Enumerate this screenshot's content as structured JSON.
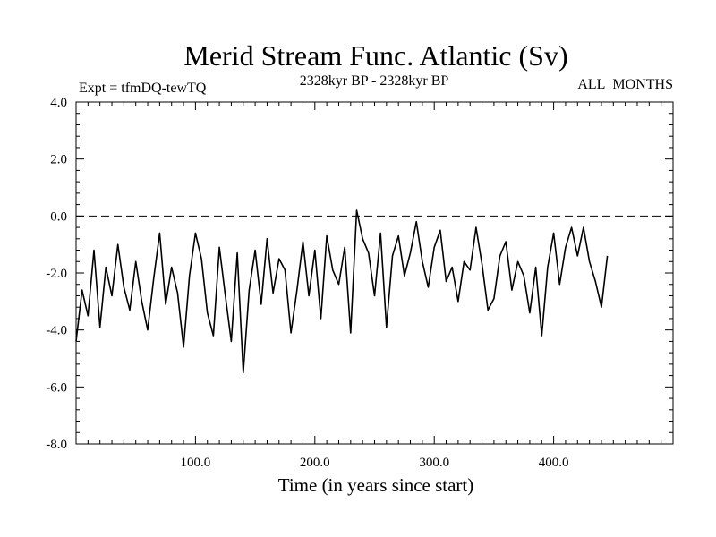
{
  "chart_data": {
    "type": "line",
    "title": "Merid Stream Func. Atlantic (Sv)",
    "subtitle_left": "Expt = tfmDQ-tewTQ",
    "subtitle_center": "2328kyr BP - 2328kyr BP",
    "subtitle_right": "ALL_MONTHS",
    "xlabel": "Time (in years since start)",
    "ylabel": "",
    "xlim": [
      0,
      500
    ],
    "ylim": [
      -8,
      4
    ],
    "x_ticks": [
      100,
      200,
      300,
      400
    ],
    "x_tick_labels": [
      "100.0",
      "200.0",
      "300.0",
      "400.0"
    ],
    "y_ticks": [
      -8,
      -6,
      -4,
      -2,
      0,
      2,
      4
    ],
    "y_tick_labels": [
      "-8.0",
      "-6.0",
      "-4.0",
      "-2.0",
      "0.0",
      "2.0",
      "4.0"
    ],
    "reference_line": {
      "y": 0,
      "style": "dashed"
    },
    "series": [
      {
        "name": "Merid Stream Func. Atlantic",
        "color": "#000000",
        "x_start": 0,
        "x_step": 5,
        "values": [
          -4.4,
          -2.6,
          -3.5,
          -1.2,
          -3.9,
          -1.8,
          -2.8,
          -1.0,
          -2.5,
          -3.3,
          -1.6,
          -3.0,
          -4.0,
          -2.2,
          -0.6,
          -3.1,
          -1.8,
          -2.7,
          -4.6,
          -2.1,
          -0.6,
          -1.5,
          -3.4,
          -4.2,
          -1.1,
          -2.8,
          -4.4,
          -1.3,
          -5.5,
          -2.6,
          -1.2,
          -3.1,
          -0.8,
          -2.7,
          -1.5,
          -1.9,
          -4.1,
          -2.6,
          -0.9,
          -2.8,
          -1.2,
          -3.6,
          -0.7,
          -1.9,
          -2.4,
          -1.1,
          -4.1,
          0.2,
          -0.8,
          -1.3,
          -2.8,
          -0.6,
          -3.9,
          -1.4,
          -0.7,
          -2.1,
          -1.3,
          -0.2,
          -1.6,
          -2.5,
          -1.1,
          -0.5,
          -2.3,
          -1.8,
          -3.0,
          -1.6,
          -1.9,
          -0.4,
          -1.7,
          -3.3,
          -2.9,
          -1.4,
          -0.9,
          -2.6,
          -1.6,
          -2.1,
          -3.4,
          -1.8,
          -4.2,
          -1.8,
          -0.6,
          -2.4,
          -1.1,
          -0.4,
          -1.4,
          -0.4,
          -1.6,
          -2.3,
          -3.2,
          -1.4
        ]
      }
    ]
  }
}
